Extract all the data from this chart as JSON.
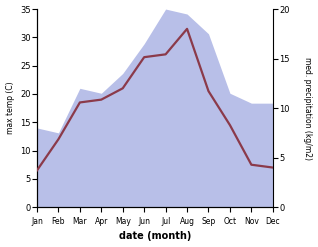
{
  "months": [
    "Jan",
    "Feb",
    "Mar",
    "Apr",
    "May",
    "Jun",
    "Jul",
    "Aug",
    "Sep",
    "Oct",
    "Nov",
    "Dec"
  ],
  "max_temp": [
    6.5,
    12.0,
    18.5,
    19.0,
    21.0,
    26.5,
    27.0,
    31.5,
    20.5,
    14.5,
    7.5,
    7.0
  ],
  "precipitation": [
    8.0,
    7.5,
    12.0,
    11.5,
    13.5,
    16.5,
    20.0,
    19.5,
    17.5,
    11.5,
    10.5,
    10.5
  ],
  "temp_color": "#8B3A4A",
  "precip_fill_color": "#b8bfe8",
  "background_color": "#ffffff",
  "xlabel": "date (month)",
  "ylabel_left": "max temp (C)",
  "ylabel_right": "med. precipitation (kg/m2)",
  "ylim_left": [
    0,
    35
  ],
  "ylim_right": [
    0,
    20
  ],
  "yticks_left": [
    0,
    5,
    10,
    15,
    20,
    25,
    30,
    35
  ],
  "yticks_right": [
    0,
    5,
    10,
    15,
    20
  ],
  "line_width": 1.6
}
